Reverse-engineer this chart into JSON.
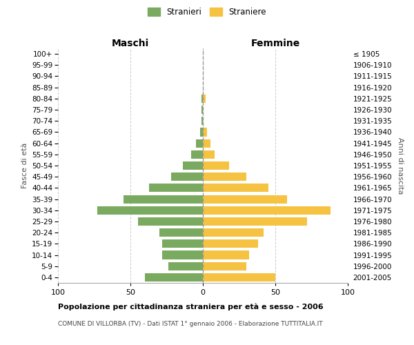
{
  "age_groups": [
    "100+",
    "95-99",
    "90-94",
    "85-89",
    "80-84",
    "75-79",
    "70-74",
    "65-69",
    "60-64",
    "55-59",
    "50-54",
    "45-49",
    "40-44",
    "35-39",
    "30-34",
    "25-29",
    "20-24",
    "15-19",
    "10-14",
    "5-9",
    "0-4"
  ],
  "birth_years": [
    "≤ 1905",
    "1906-1910",
    "1911-1915",
    "1916-1920",
    "1921-1925",
    "1926-1930",
    "1931-1935",
    "1936-1940",
    "1941-1945",
    "1946-1950",
    "1951-1955",
    "1956-1960",
    "1961-1965",
    "1966-1970",
    "1971-1975",
    "1976-1980",
    "1981-1985",
    "1986-1990",
    "1991-1995",
    "1996-2000",
    "2001-2005"
  ],
  "maschi": [
    0,
    0,
    0,
    0,
    1,
    1,
    1,
    2,
    5,
    8,
    14,
    22,
    37,
    55,
    73,
    45,
    30,
    28,
    28,
    24,
    40
  ],
  "femmine": [
    0,
    0,
    0,
    0,
    2,
    0,
    0,
    3,
    5,
    8,
    18,
    30,
    45,
    58,
    88,
    72,
    42,
    38,
    32,
    30,
    50
  ],
  "maschi_color": "#7aaa5f",
  "femmine_color": "#f5c242",
  "title_main": "Popolazione per cittadinanza straniera per età e sesso - 2006",
  "title_sub": "COMUNE DI VILLORBA (TV) - Dati ISTAT 1° gennaio 2006 - Elaborazione TUTTITALIA.IT",
  "label_maschi": "Maschi",
  "label_femmine": "Femmine",
  "ylabel_left": "Fasce di età",
  "ylabel_right": "Anni di nascita",
  "legend_maschi": "Stranieri",
  "legend_femmine": "Straniere",
  "xlim": 100,
  "background_color": "#ffffff",
  "grid_color": "#cccccc",
  "spine_color": "#aaaaaa"
}
